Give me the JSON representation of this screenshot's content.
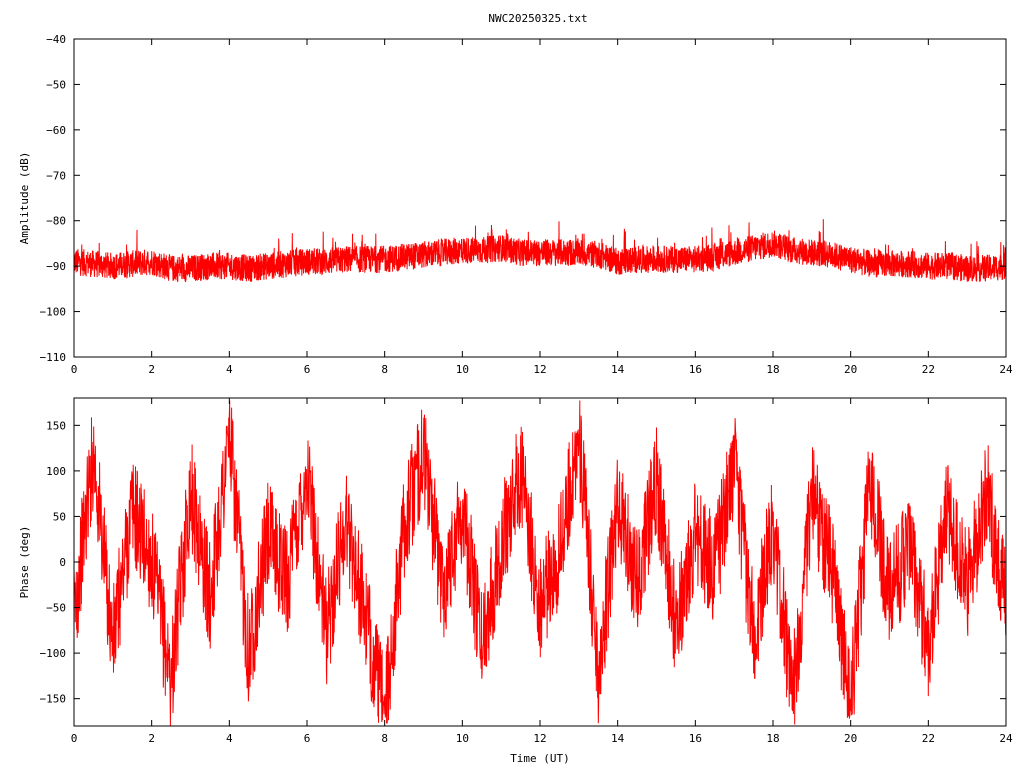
{
  "chart_data": [
    {
      "type": "line",
      "title": "NWC20250325.txt",
      "xlabel": "",
      "ylabel": "Amplitude (dB)",
      "xlim": [
        0,
        24
      ],
      "ylim": [
        -110,
        -40
      ],
      "xticks": [
        0,
        2,
        4,
        6,
        8,
        10,
        12,
        14,
        16,
        18,
        20,
        22,
        24
      ],
      "yticks": [
        -40,
        -50,
        -60,
        -70,
        -80,
        -90,
        -100,
        -110
      ],
      "grid": false,
      "series": [
        {
          "color": "#ff0000",
          "x": [
            0,
            0.5,
            1,
            1.5,
            2,
            2.5,
            3,
            3.5,
            4,
            4.5,
            5,
            5.5,
            6,
            6.5,
            7,
            7.5,
            8,
            8.5,
            9,
            9.5,
            10,
            10.5,
            11,
            11.5,
            12,
            12.5,
            13,
            13.5,
            14,
            14.5,
            15,
            15.5,
            16,
            16.5,
            17,
            17.5,
            18,
            18.5,
            19,
            19.5,
            20,
            20.5,
            21,
            21.5,
            22,
            22.5,
            23,
            23.5,
            24
          ],
          "y": [
            -89,
            -89.5,
            -90,
            -89.5,
            -89,
            -90.5,
            -90.5,
            -90,
            -90,
            -90.5,
            -90,
            -89.5,
            -89,
            -89,
            -88.5,
            -88.5,
            -88.5,
            -88,
            -87.5,
            -87,
            -86.5,
            -86.5,
            -86,
            -87,
            -87,
            -87,
            -87,
            -87.5,
            -89,
            -88.5,
            -88.5,
            -88.5,
            -88.5,
            -88,
            -87,
            -86,
            -85,
            -86.5,
            -87,
            -87.5,
            -88.5,
            -89.5,
            -89.5,
            -89.5,
            -90,
            -90,
            -90.5,
            -90.5,
            -90
          ]
        }
      ]
    },
    {
      "type": "line",
      "title": "",
      "xlabel": "Time (UT)",
      "ylabel": "Phase (deg)",
      "xlim": [
        0,
        24
      ],
      "ylim": [
        -180,
        180
      ],
      "xticks": [
        0,
        2,
        4,
        6,
        8,
        10,
        12,
        14,
        16,
        18,
        20,
        22,
        24
      ],
      "yticks": [
        150,
        100,
        50,
        0,
        -50,
        -100,
        -150
      ],
      "grid": false,
      "series": [
        {
          "color": "#ff0000",
          "x": [
            0,
            0.5,
            1,
            1.5,
            2,
            2.5,
            3,
            3.5,
            4,
            4.5,
            5,
            5.5,
            6,
            6.5,
            7,
            7.5,
            8,
            8.5,
            9,
            9.5,
            10,
            10.5,
            11,
            11.5,
            12,
            12.5,
            13,
            13.5,
            14,
            14.5,
            15,
            15.5,
            16,
            16.5,
            17,
            17.5,
            18,
            18.5,
            19,
            19.5,
            20,
            20.5,
            21,
            21.5,
            22,
            22.5,
            23,
            23.5,
            24
          ],
          "y": [
            -60,
            120,
            -90,
            60,
            0,
            -130,
            80,
            -40,
            140,
            -100,
            30,
            -20,
            100,
            -80,
            50,
            -60,
            -170,
            40,
            120,
            -30,
            60,
            -90,
            20,
            100,
            -50,
            10,
            140,
            -120,
            60,
            -20,
            90,
            -70,
            30,
            -10,
            110,
            -80,
            40,
            -150,
            70,
            0,
            -160,
            90,
            -40,
            20,
            -90,
            60,
            -30,
            80,
            -50
          ]
        }
      ]
    }
  ]
}
